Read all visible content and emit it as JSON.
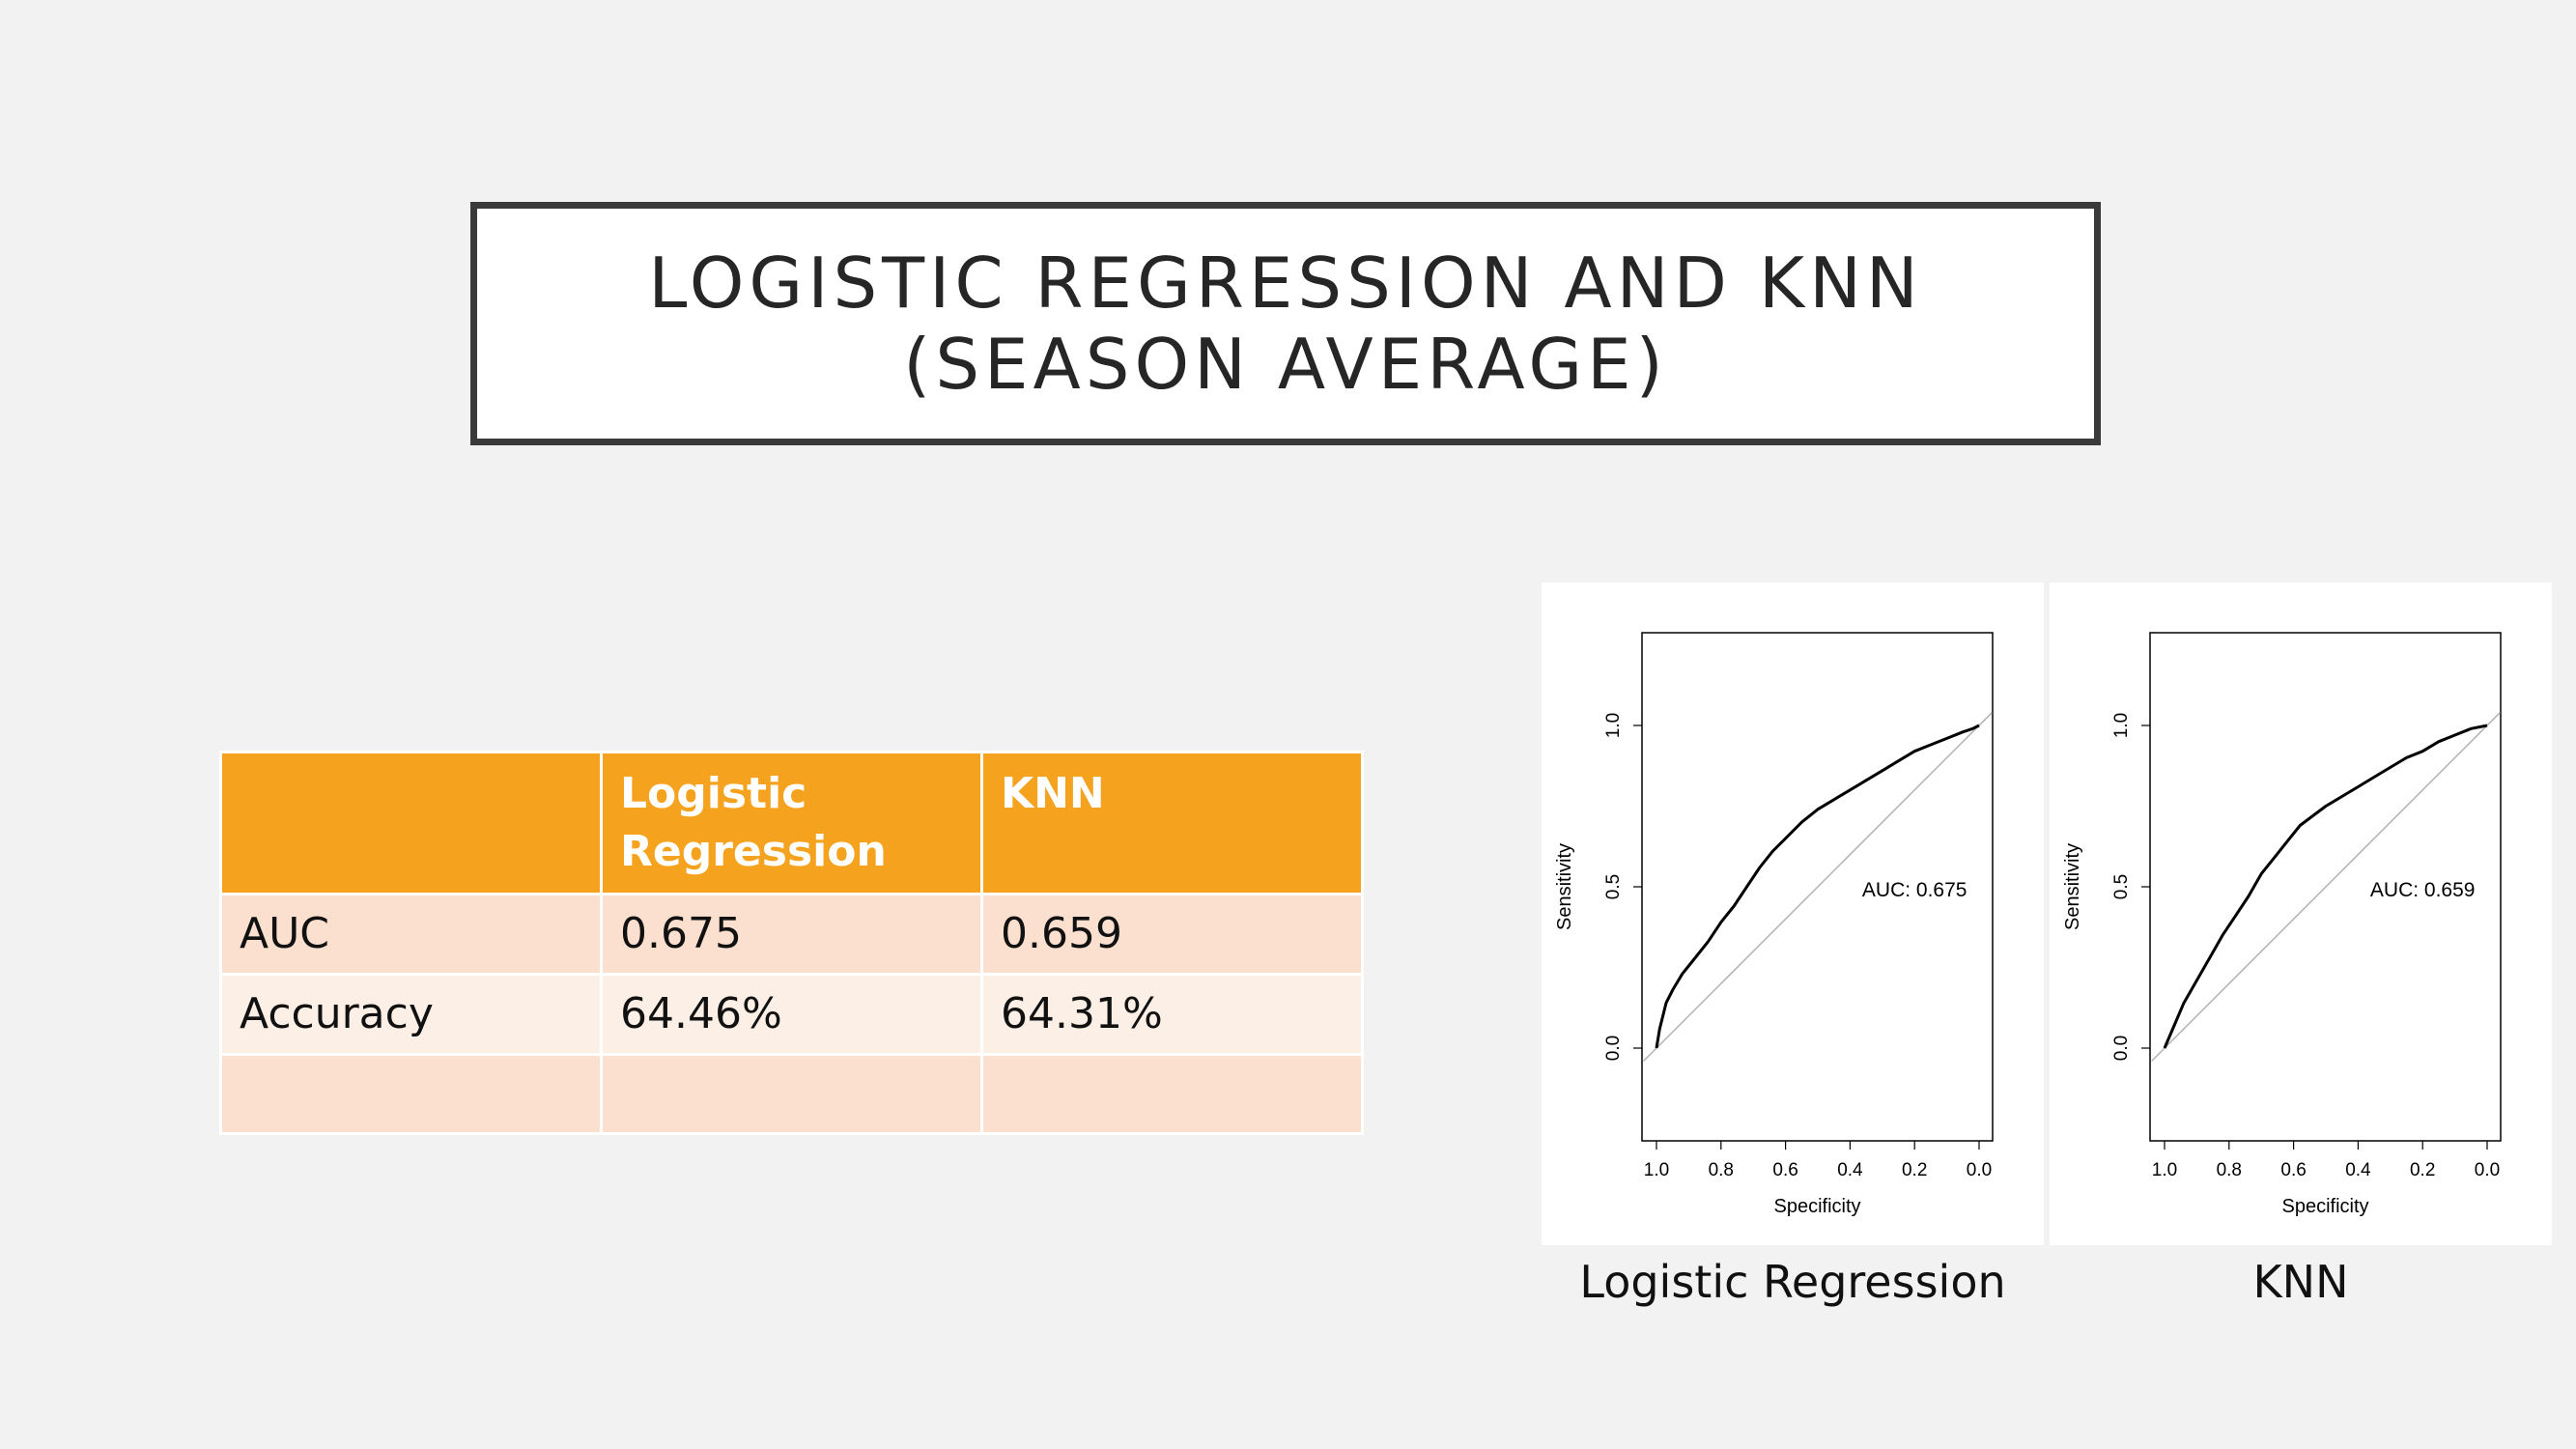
{
  "slide": {
    "title_line1": "LOGISTIC REGRESSION AND KNN",
    "title_line2": "(SEASON AVERAGE)"
  },
  "table": {
    "headers": [
      "",
      "Logistic Regression",
      "KNN"
    ],
    "rows": [
      [
        "AUC",
        "0.675",
        "0.659"
      ],
      [
        "Accuracy",
        "64.46%",
        "64.31%"
      ],
      [
        "",
        "",
        ""
      ]
    ]
  },
  "captions": [
    "Logistic Regression",
    "KNN"
  ],
  "chart_data": [
    {
      "type": "line",
      "title": "",
      "xlabel": "Specificity",
      "ylabel": "Sensitivity",
      "x_reversed": true,
      "xlim": [
        1.0,
        0.0
      ],
      "ylim": [
        0.0,
        1.0
      ],
      "x_ticks": [
        "1.0",
        "0.8",
        "0.6",
        "0.4",
        "0.2",
        "0.0"
      ],
      "y_ticks": [
        "0.0",
        "0.5",
        "1.0"
      ],
      "annotation": "AUC: 0.675",
      "series": [
        {
          "x": [
            1.0,
            0.99,
            0.97,
            0.95,
            0.92,
            0.88,
            0.84,
            0.8,
            0.76,
            0.72,
            0.68,
            0.64,
            0.6,
            0.55,
            0.5,
            0.45,
            0.4,
            0.35,
            0.3,
            0.25,
            0.2,
            0.15,
            0.1,
            0.05,
            0.02,
            0.0
          ],
          "y": [
            0.0,
            0.06,
            0.14,
            0.18,
            0.23,
            0.28,
            0.33,
            0.39,
            0.44,
            0.5,
            0.56,
            0.61,
            0.65,
            0.7,
            0.74,
            0.77,
            0.8,
            0.83,
            0.86,
            0.89,
            0.92,
            0.94,
            0.96,
            0.98,
            0.99,
            1.0
          ]
        }
      ]
    },
    {
      "type": "line",
      "title": "",
      "xlabel": "Specificity",
      "ylabel": "Sensitivity",
      "x_reversed": true,
      "xlim": [
        1.0,
        0.0
      ],
      "ylim": [
        0.0,
        1.0
      ],
      "x_ticks": [
        "1.0",
        "0.8",
        "0.6",
        "0.4",
        "0.2",
        "0.0"
      ],
      "y_ticks": [
        "0.0",
        "0.5",
        "1.0"
      ],
      "annotation": "AUC: 0.659",
      "series": [
        {
          "x": [
            1.0,
            0.97,
            0.94,
            0.9,
            0.86,
            0.82,
            0.78,
            0.74,
            0.7,
            0.66,
            0.62,
            0.58,
            0.54,
            0.5,
            0.45,
            0.4,
            0.35,
            0.3,
            0.25,
            0.2,
            0.15,
            0.1,
            0.05,
            0.0
          ],
          "y": [
            0.0,
            0.07,
            0.14,
            0.21,
            0.28,
            0.35,
            0.41,
            0.47,
            0.54,
            0.59,
            0.64,
            0.69,
            0.72,
            0.75,
            0.78,
            0.81,
            0.84,
            0.87,
            0.9,
            0.92,
            0.95,
            0.97,
            0.99,
            1.0
          ]
        }
      ]
    }
  ]
}
